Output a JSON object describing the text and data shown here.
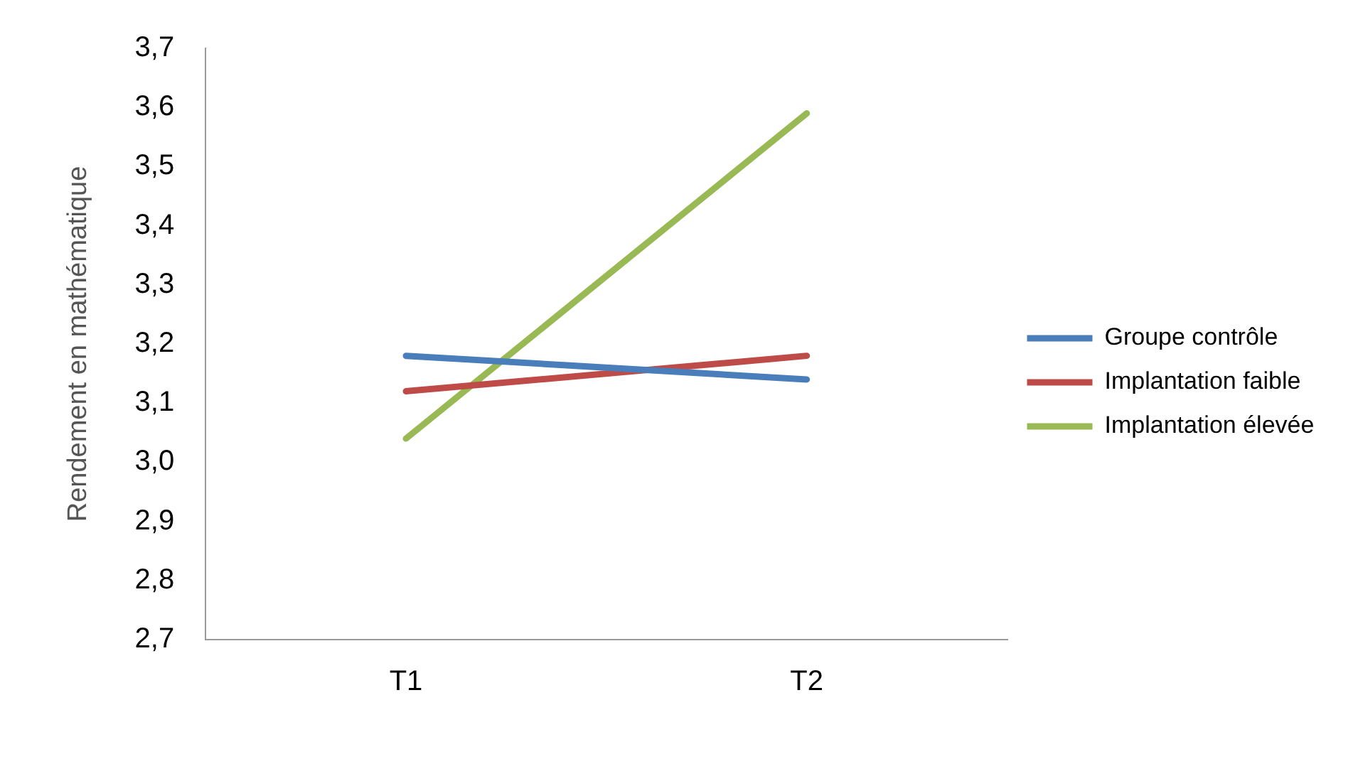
{
  "chart_data": {
    "type": "line",
    "ylabel": "Rendement en mathématique",
    "categories": [
      "T1",
      "T2"
    ],
    "series": [
      {
        "name": "Groupe contrôle",
        "color": "#4a7ebb",
        "values": [
          3.18,
          3.14
        ]
      },
      {
        "name": "Implantation faible",
        "color": "#be4b48",
        "values": [
          3.12,
          3.18
        ]
      },
      {
        "name": "Implantation élevée",
        "color": "#98b954",
        "values": [
          3.04,
          3.59
        ]
      }
    ],
    "ylim": [
      2.7,
      3.7
    ],
    "yticks": [
      {
        "value": 2.7,
        "label": "2,7"
      },
      {
        "value": 2.8,
        "label": "2,8"
      },
      {
        "value": 2.9,
        "label": "2,9"
      },
      {
        "value": 3.0,
        "label": "3,0"
      },
      {
        "value": 3.1,
        "label": "3,1"
      },
      {
        "value": 3.2,
        "label": "3,2"
      },
      {
        "value": 3.3,
        "label": "3,3"
      },
      {
        "value": 3.4,
        "label": "3,4"
      },
      {
        "value": 3.5,
        "label": "3,5"
      },
      {
        "value": 3.6,
        "label": "3,6"
      },
      {
        "value": 3.7,
        "label": "3,7"
      }
    ],
    "grid": false,
    "legend": "right",
    "marker": "none",
    "line_style": "solid"
  }
}
